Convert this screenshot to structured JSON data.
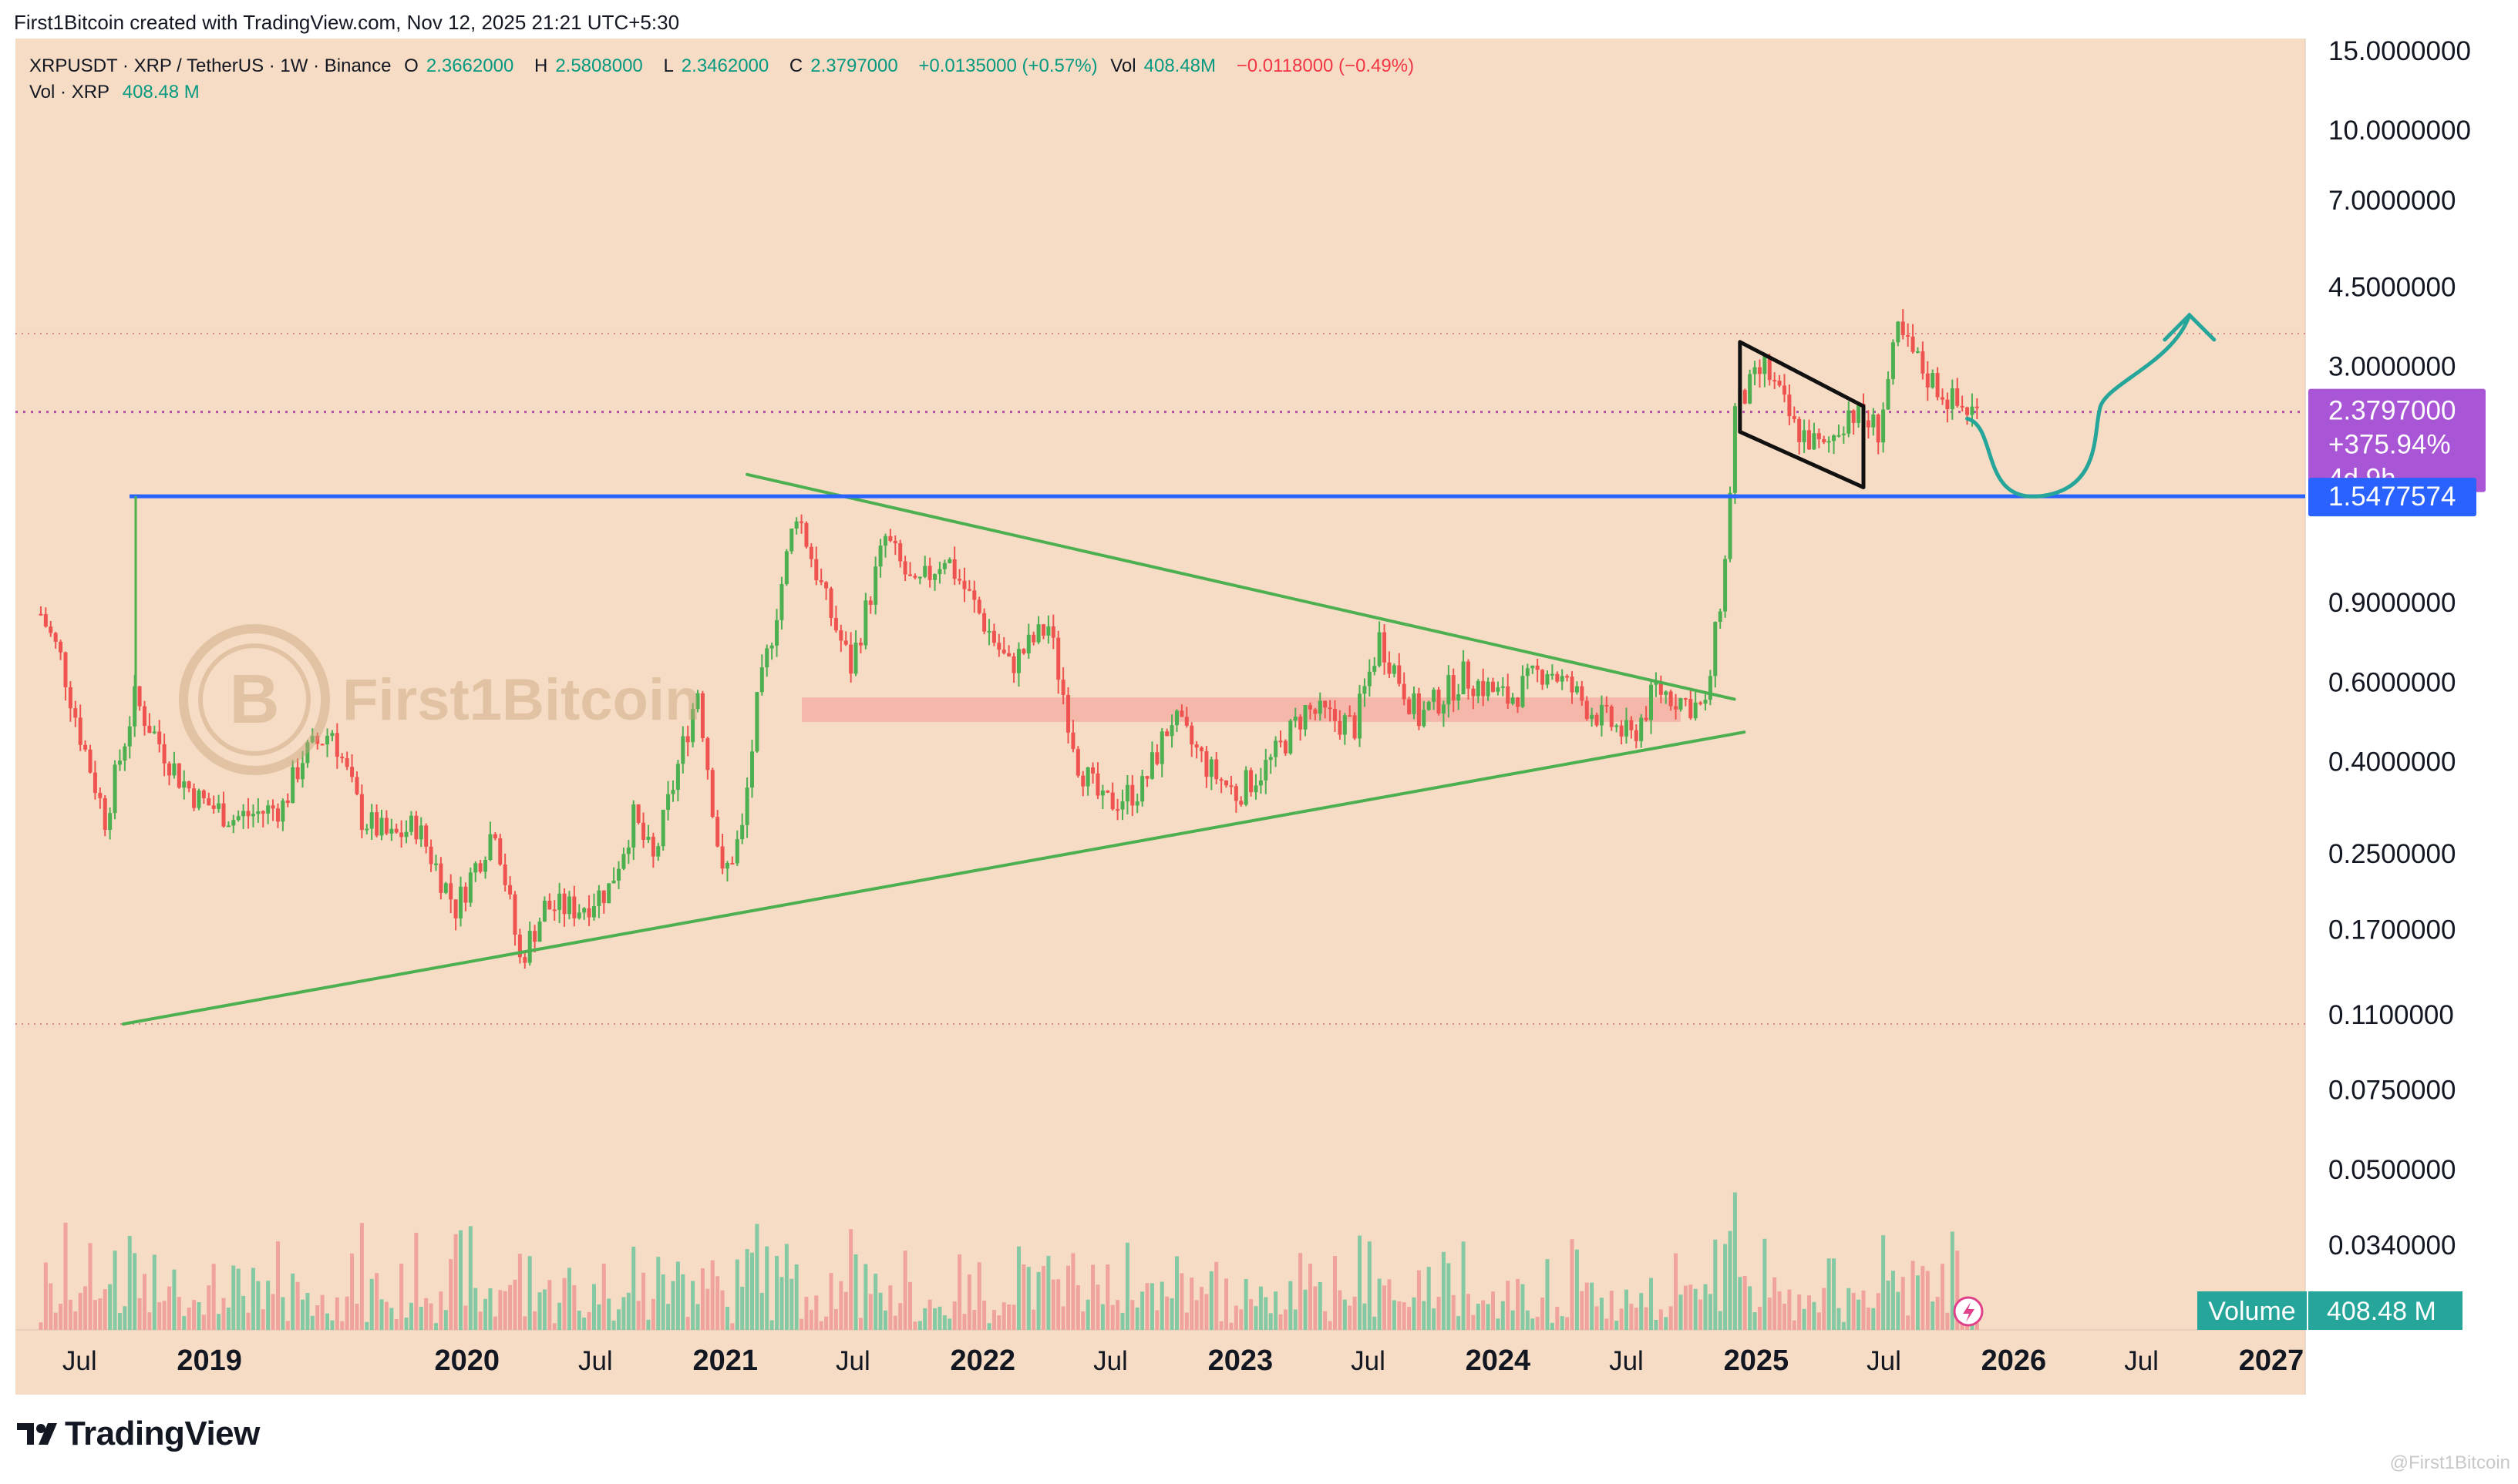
{
  "credit": "First1Bitcoin created with TradingView.com, Nov 12, 2025 21:21 UTC+5:30",
  "legend": {
    "symbol": "XRPUSDT · XRP / TetherUS · 1W · Binance",
    "o_label": "O",
    "o": "2.3662000",
    "h_label": "H",
    "h": "2.5808000",
    "l_label": "L",
    "l": "2.3462000",
    "c_label": "C",
    "c": "2.3797000",
    "change": "+0.0135000 (+0.57%)",
    "vol_label": "Vol",
    "vol": "408.48M",
    "vol_change": "−0.0118000 (−0.49%)",
    "vol_line_label": "Vol · XRP",
    "vol_line_value": "408.48 M"
  },
  "watermark": "First1Bitcoin",
  "footer_logo": "TradingView",
  "footer_mark": "@First1Bitcoin",
  "colors": {
    "background": "#f6dcc4",
    "up": "#4caf50",
    "down": "#ef5350",
    "level_line": "#2962ff",
    "trendline": "#4caf50",
    "projection": "#26a69a",
    "price_badge": "#a855d6",
    "level_badge": "#2962ff",
    "volume_badge": "#26a69a"
  },
  "chart_data": {
    "type": "candlestick",
    "interval": "1W",
    "scale": "log",
    "y_ticks": [
      "15.0000000",
      "10.0000000",
      "7.0000000",
      "4.5000000",
      "3.0000000",
      "0.9000000",
      "0.6000000",
      "0.4000000",
      "0.2500000",
      "0.1700000",
      "0.1100000",
      "0.0750000",
      "0.0500000",
      "0.0340000"
    ],
    "x_ticks": [
      "Jul",
      "2019",
      "2020",
      "Jul",
      "2021",
      "Jul",
      "2022",
      "Jul",
      "2023",
      "Jul",
      "2024",
      "Jul",
      "2025",
      "Jul",
      "2026",
      "Jul",
      "2027"
    ],
    "x_range": [
      "2018-04",
      "2027-03"
    ],
    "last_price": {
      "value": "2.3797000",
      "change": "+375.94%",
      "countdown": "4d 9h"
    },
    "horizontal_level": {
      "value": "1.5477574"
    },
    "volume": {
      "label": "Volume",
      "value": "408.48 M"
    },
    "price_path": [
      [
        "2018-05-07",
        0.85
      ],
      [
        "2018-06-04",
        0.68
      ],
      [
        "2018-07-02",
        0.46
      ],
      [
        "2018-08-06",
        0.3
      ],
      [
        "2018-09-17",
        0.55
      ],
      [
        "2018-10-15",
        0.46
      ],
      [
        "2018-11-19",
        0.37
      ],
      [
        "2018-12-17",
        0.33
      ],
      [
        "2019-02-04",
        0.3
      ],
      [
        "2019-03-18",
        0.31
      ],
      [
        "2019-04-15",
        0.32
      ],
      [
        "2019-05-13",
        0.41
      ],
      [
        "2019-06-24",
        0.47
      ],
      [
        "2019-08-05",
        0.3
      ],
      [
        "2019-09-16",
        0.27
      ],
      [
        "2019-10-21",
        0.29
      ],
      [
        "2019-12-16",
        0.19
      ],
      [
        "2020-02-10",
        0.29
      ],
      [
        "2020-03-16",
        0.145
      ],
      [
        "2020-04-20",
        0.19
      ],
      [
        "2020-06-08",
        0.19
      ],
      [
        "2020-07-20",
        0.21
      ],
      [
        "2020-08-24",
        0.3
      ],
      [
        "2020-09-21",
        0.24
      ],
      [
        "2020-11-23",
        0.58
      ],
      [
        "2020-12-28",
        0.22
      ],
      [
        "2021-01-25",
        0.28
      ],
      [
        "2021-02-15",
        0.53
      ],
      [
        "2021-04-12",
        1.45
      ],
      [
        "2021-05-24",
        0.9
      ],
      [
        "2021-06-28",
        0.65
      ],
      [
        "2021-08-16",
        1.25
      ],
      [
        "2021-09-27",
        0.95
      ],
      [
        "2021-11-08",
        1.15
      ],
      [
        "2021-12-27",
        0.85
      ],
      [
        "2022-02-07",
        0.65
      ],
      [
        "2022-04-04",
        0.8
      ],
      [
        "2022-05-16",
        0.4
      ],
      [
        "2022-06-20",
        0.32
      ],
      [
        "2022-08-15",
        0.35
      ],
      [
        "2022-09-26",
        0.5
      ],
      [
        "2022-11-21",
        0.38
      ],
      [
        "2022-12-26",
        0.34
      ],
      [
        "2023-02-13",
        0.4
      ],
      [
        "2023-04-03",
        0.52
      ],
      [
        "2023-06-12",
        0.48
      ],
      [
        "2023-07-17",
        0.75
      ],
      [
        "2023-09-11",
        0.5
      ],
      [
        "2023-11-13",
        0.62
      ],
      [
        "2024-01-15",
        0.55
      ],
      [
        "2024-03-11",
        0.65
      ],
      [
        "2024-05-13",
        0.52
      ],
      [
        "2024-07-08",
        0.45
      ],
      [
        "2024-08-12",
        0.58
      ],
      [
        "2024-10-21",
        0.52
      ],
      [
        "2024-11-18",
        1.1
      ],
      [
        "2024-12-02",
        2.4
      ],
      [
        "2025-01-13",
        3.0
      ],
      [
        "2025-02-24",
        2.2
      ],
      [
        "2025-04-07",
        1.95
      ],
      [
        "2025-05-12",
        2.4
      ],
      [
        "2025-06-23",
        2.18
      ],
      [
        "2025-07-21",
        3.55
      ],
      [
        "2025-09-01",
        2.85
      ],
      [
        "2025-10-13",
        2.45
      ],
      [
        "2025-11-10",
        2.38
      ]
    ],
    "annotations": {
      "triangle_upper": [
        [
          "2021-02-01",
          1.73
        ],
        [
          "2024-12-01",
          0.55
        ]
      ],
      "triangle_lower": [
        [
          "2018-09-01",
          0.105
        ],
        [
          "2024-12-15",
          0.465
        ]
      ],
      "flag_upper": [
        [
          "2024-12-09",
          3.4
        ],
        [
          "2025-06-02",
          2.45
        ]
      ],
      "flag_lower": [
        [
          "2024-12-09",
          2.15
        ],
        [
          "2025-06-02",
          1.62
        ]
      ],
      "projection": [
        [
          "2025-10-27",
          2.3
        ],
        [
          "2026-02-09",
          1.55
        ],
        [
          "2026-05-04",
          2.45
        ],
        [
          "2026-09-07",
          3.9
        ]
      ]
    }
  }
}
